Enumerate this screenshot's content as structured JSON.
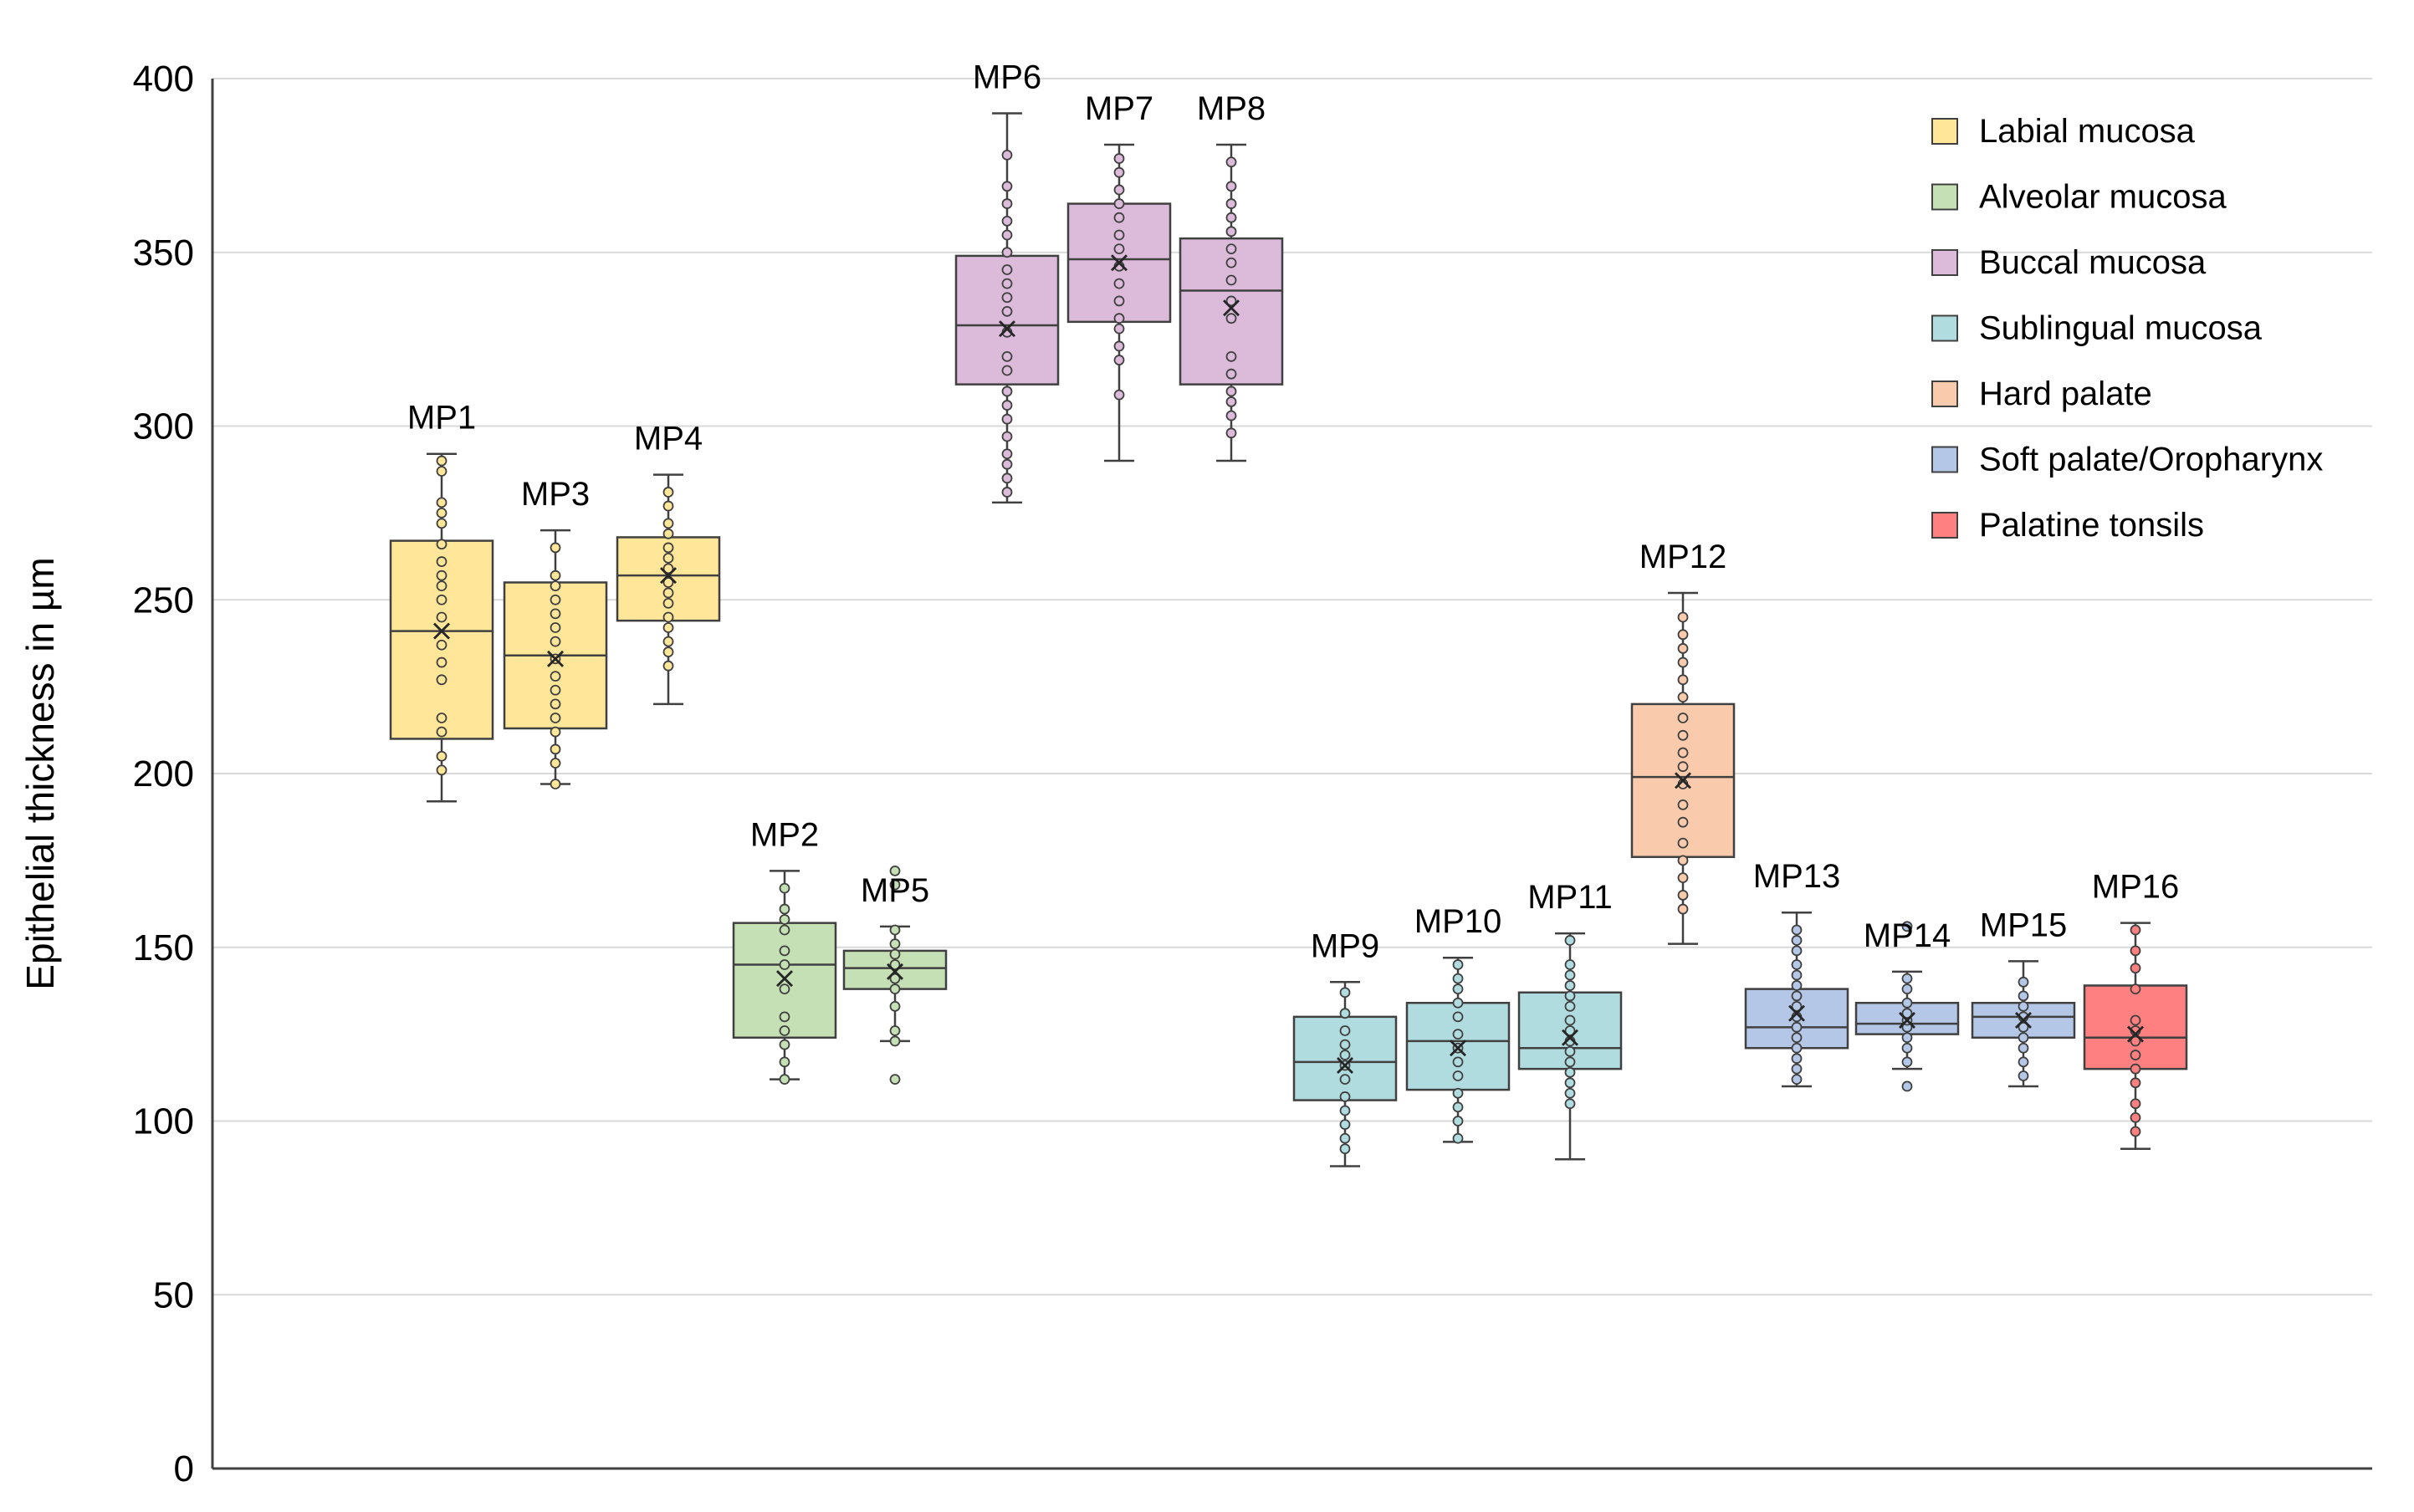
{
  "chart_data": {
    "type": "box",
    "title": "",
    "xlabel": "",
    "ylabel": "Epithelial thickness in µm",
    "ylim": [
      0,
      400
    ],
    "yticks": [
      0,
      50,
      100,
      150,
      200,
      250,
      300,
      350,
      400
    ],
    "grid": "horizontal",
    "legend_position": "top-right",
    "legend": [
      {
        "name": "Labial mucosa",
        "color": "#FFE699"
      },
      {
        "name": "Alveolar mucosa",
        "color": "#C5E0B4"
      },
      {
        "name": "Buccal mucosa",
        "color": "#DBBBD9"
      },
      {
        "name": "Sublingual mucosa",
        "color": "#B0DCE0"
      },
      {
        "name": "Hard palate",
        "color": "#F9CBAC"
      },
      {
        "name": "Soft palate/Oropharynx",
        "color": "#B4C7E7"
      },
      {
        "name": "Palatine tonsils",
        "color": "#FF8080"
      }
    ],
    "boxes": [
      {
        "label": "MP1",
        "group": "Labial mucosa",
        "min": 192,
        "q1": 210,
        "median": 241,
        "q3": 267,
        "max": 292,
        "mean": 241,
        "points": [
          201,
          205,
          212,
          216,
          227,
          232,
          237,
          245,
          250,
          254,
          257,
          261,
          266,
          272,
          275,
          278,
          287,
          290
        ]
      },
      {
        "label": "MP3",
        "group": "Labial mucosa",
        "min": 197,
        "q1": 213,
        "median": 234,
        "q3": 255,
        "max": 270,
        "mean": 233,
        "points": [
          197,
          203,
          207,
          212,
          216,
          220,
          224,
          228,
          233,
          238,
          242,
          246,
          250,
          254,
          257,
          265
        ]
      },
      {
        "label": "MP4",
        "group": "Labial mucosa",
        "min": 220,
        "q1": 244,
        "median": 257,
        "q3": 268,
        "max": 286,
        "mean": 257,
        "points": [
          231,
          235,
          238,
          242,
          245,
          249,
          252,
          255,
          259,
          262,
          265,
          269,
          272,
          277,
          281
        ]
      },
      {
        "label": "MP2",
        "group": "Alveolar mucosa",
        "min": 112,
        "q1": 124,
        "median": 145,
        "q3": 157,
        "max": 172,
        "mean": 141,
        "points": [
          112,
          117,
          122,
          126,
          130,
          138,
          145,
          149,
          155,
          158,
          161,
          167
        ]
      },
      {
        "label": "MP5",
        "group": "Alveolar mucosa",
        "min": 123,
        "q1": 138,
        "median": 144,
        "q3": 149,
        "max": 156,
        "mean": 143,
        "points": [
          112,
          123,
          126,
          133,
          138,
          141,
          145,
          148,
          151,
          155,
          168,
          172
        ]
      },
      {
        "label": "MP6",
        "group": "Buccal mucosa",
        "min": 278,
        "q1": 312,
        "median": 329,
        "q3": 349,
        "max": 390,
        "mean": 328,
        "points": [
          281,
          285,
          289,
          292,
          297,
          302,
          306,
          310,
          316,
          320,
          327,
          333,
          337,
          341,
          345,
          350,
          355,
          359,
          364,
          369,
          378
        ]
      },
      {
        "label": "MP7",
        "group": "Buccal mucosa",
        "min": 290,
        "q1": 330,
        "median": 348,
        "q3": 364,
        "max": 381,
        "mean": 347,
        "points": [
          309,
          319,
          323,
          328,
          331,
          336,
          341,
          346,
          351,
          355,
          360,
          364,
          368,
          373,
          377
        ]
      },
      {
        "label": "MP8",
        "group": "Buccal mucosa",
        "min": 290,
        "q1": 312,
        "median": 339,
        "q3": 354,
        "max": 381,
        "mean": 334,
        "points": [
          298,
          303,
          307,
          310,
          315,
          320,
          331,
          336,
          342,
          347,
          351,
          356,
          360,
          364,
          369,
          376
        ]
      },
      {
        "label": "MP9",
        "group": "Sublingual mucosa",
        "min": 87,
        "q1": 106,
        "median": 117,
        "q3": 130,
        "max": 140,
        "mean": 116,
        "points": [
          92,
          95,
          99,
          103,
          107,
          112,
          116,
          119,
          122,
          126,
          131,
          137
        ]
      },
      {
        "label": "MP10",
        "group": "Sublingual mucosa",
        "min": 94,
        "q1": 109,
        "median": 123,
        "q3": 134,
        "max": 147,
        "mean": 121,
        "points": [
          95,
          100,
          104,
          108,
          113,
          117,
          121,
          125,
          130,
          134,
          138,
          141,
          145
        ]
      },
      {
        "label": "MP11",
        "group": "Sublingual mucosa",
        "min": 89,
        "q1": 115,
        "median": 121,
        "q3": 137,
        "max": 154,
        "mean": 124,
        "points": [
          105,
          108,
          111,
          114,
          117,
          120,
          123,
          126,
          129,
          133,
          136,
          139,
          142,
          145,
          152
        ]
      },
      {
        "label": "MP12",
        "group": "Hard palate",
        "min": 151,
        "q1": 176,
        "median": 199,
        "q3": 220,
        "max": 252,
        "mean": 198,
        "points": [
          161,
          165,
          170,
          175,
          180,
          186,
          191,
          197,
          202,
          206,
          211,
          216,
          222,
          227,
          232,
          236,
          240,
          245
        ]
      },
      {
        "label": "MP13",
        "group": "Soft palate/Oropharynx",
        "min": 110,
        "q1": 121,
        "median": 127,
        "q3": 138,
        "max": 160,
        "mean": 131,
        "points": [
          112,
          115,
          118,
          121,
          124,
          127,
          130,
          133,
          136,
          139,
          142,
          145,
          149,
          152,
          155
        ]
      },
      {
        "label": "MP14",
        "group": "Soft palate/Oropharynx",
        "min": 115,
        "q1": 125,
        "median": 128,
        "q3": 134,
        "max": 143,
        "mean": 129,
        "points": [
          110,
          117,
          121,
          124,
          127,
          129,
          131,
          134,
          138,
          141,
          156
        ]
      },
      {
        "label": "MP15",
        "group": "Soft palate/Oropharynx",
        "min": 110,
        "q1": 124,
        "median": 130,
        "q3": 134,
        "max": 146,
        "mean": 129,
        "points": [
          113,
          117,
          121,
          124,
          127,
          130,
          133,
          136,
          140
        ]
      },
      {
        "label": "MP16",
        "group": "Palatine tonsils",
        "min": 92,
        "q1": 115,
        "median": 124,
        "q3": 139,
        "max": 157,
        "mean": 125,
        "points": [
          97,
          101,
          105,
          111,
          115,
          119,
          123,
          126,
          129,
          138,
          144,
          149,
          155
        ]
      }
    ]
  }
}
